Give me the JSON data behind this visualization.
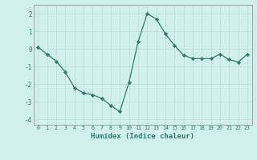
{
  "x": [
    0,
    1,
    2,
    3,
    4,
    5,
    6,
    7,
    8,
    9,
    10,
    11,
    12,
    13,
    14,
    15,
    16,
    17,
    18,
    19,
    20,
    21,
    22,
    23
  ],
  "y": [
    0.1,
    -0.3,
    -0.7,
    -1.3,
    -2.2,
    -2.5,
    -2.6,
    -2.8,
    -3.2,
    -3.55,
    -1.9,
    0.4,
    2.0,
    1.7,
    0.85,
    0.2,
    -0.35,
    -0.55,
    -0.55,
    -0.55,
    -0.3,
    -0.6,
    -0.75,
    -0.3
  ],
  "xlabel": "Humidex (Indice chaleur)",
  "ylabel": "",
  "ylim": [
    -4.3,
    2.5
  ],
  "xlim": [
    -0.5,
    23.5
  ],
  "line_color": "#2e7d6e",
  "marker_color": "#2e7d6e",
  "bg_color": "#cff0eb",
  "grid_color": "#b8ddd8",
  "tick_label_color": "#2e7d6e",
  "xlabel_color": "#2e7d6e",
  "yticks": [
    -4,
    -3,
    -2,
    -1,
    0,
    1,
    2
  ],
  "xticks": [
    0,
    1,
    2,
    3,
    4,
    5,
    6,
    7,
    8,
    9,
    10,
    11,
    12,
    13,
    14,
    15,
    16,
    17,
    18,
    19,
    20,
    21,
    22,
    23
  ]
}
